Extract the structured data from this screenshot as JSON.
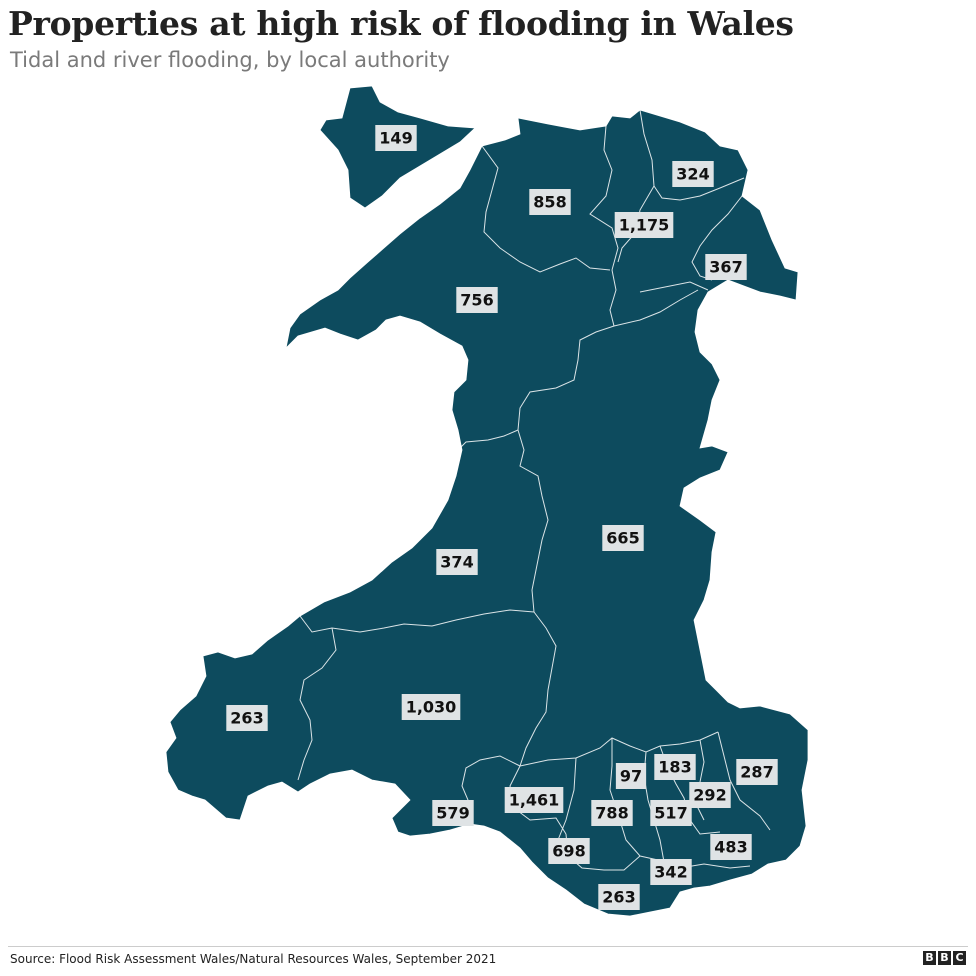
{
  "title": "Properties at high risk of flooding in Wales",
  "subtitle": "Tidal and river flooding,  by local authority",
  "source": "Source: Flood Risk Assessment Wales/Natural Resources Wales, September 2021",
  "logo": [
    "B",
    "B",
    "C"
  ],
  "colors": {
    "land": "#0d4b5e",
    "border": "#ffffff",
    "label_bg": "#dfe3e5"
  },
  "regions": [
    {
      "id": "anglesey",
      "value": "149"
    },
    {
      "id": "conwy",
      "value": "858"
    },
    {
      "id": "denbighshire",
      "value": "1,175"
    },
    {
      "id": "flintshire",
      "value": "324"
    },
    {
      "id": "wrexham",
      "value": "367"
    },
    {
      "id": "gwynedd",
      "value": "756"
    },
    {
      "id": "powys",
      "value": "665"
    },
    {
      "id": "ceredigion",
      "value": "374"
    },
    {
      "id": "pembrokeshire",
      "value": "263"
    },
    {
      "id": "carmarthenshire",
      "value": "1,030"
    },
    {
      "id": "swansea",
      "value": "579"
    },
    {
      "id": "neath-port-talbot",
      "value": "1,461"
    },
    {
      "id": "bridgend",
      "value": "698"
    },
    {
      "id": "rhondda-cynon-taf",
      "value": "788"
    },
    {
      "id": "merthyr-tydfil",
      "value": "97"
    },
    {
      "id": "blaenau-gwent",
      "value": "183"
    },
    {
      "id": "caerphilly",
      "value": "517"
    },
    {
      "id": "torfaen",
      "value": "292"
    },
    {
      "id": "monmouthshire",
      "value": "287"
    },
    {
      "id": "newport",
      "value": "483"
    },
    {
      "id": "cardiff",
      "value": "342"
    },
    {
      "id": "vale-of-glamorgan",
      "value": "263"
    }
  ]
}
